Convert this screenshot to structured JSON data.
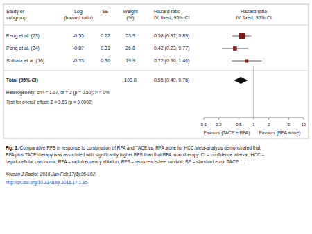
{
  "chart_data": {
    "type": "forest",
    "column_headers": [
      "Study or\nsubgroup",
      "Log\n(hazard ratio)",
      "SE",
      "Weight\n(%)",
      "Hazard ratio\nIV, fixed, 95% CI",
      "Hazard ratio\nIV, fixed, 95% CI"
    ],
    "categories": [
      "Peng et al. (23)",
      "Peng et al. (24)",
      "Shibata et al. (16)"
    ],
    "log_hr": [
      -0.55,
      -0.87,
      -0.33
    ],
    "se": [
      0.22,
      0.31,
      0.36
    ],
    "weight": [
      53.3,
      26.8,
      19.9
    ],
    "values": [
      0.58,
      0.42,
      0.72
    ],
    "ci_low": [
      0.37,
      0.23,
      0.36
    ],
    "ci_high": [
      0.89,
      0.77,
      1.46
    ],
    "value_labels": [
      "0.58 (0.37, 0.89)",
      "0.42 (0.23, 0.77)",
      "0.72 (0.36, 1.46)"
    ],
    "color": "#8B1A1A",
    "total": {
      "label": "Total (95% CI)",
      "weight_label": "100.0",
      "value": 0.55,
      "ci_low": 0.4,
      "ci_high": 0.76,
      "value_label": "0.55 (0.40, 0.76)",
      "color": "#111111"
    },
    "annotations": [
      "Heterogeneity: chi² = 1.37, df = 2 (p = 0.50); I² = 0%",
      "Test for overall effect: Z = 3.69 (p = 0.0002)"
    ],
    "log": "x",
    "xlim": [
      0.1,
      10
    ],
    "xticks": [
      0.1,
      0.2,
      0.5,
      1,
      2,
      5,
      10
    ],
    "reference_line": 1,
    "xlabel_left": "Favours (TACE + RFA)",
    "xlabel_right": "Favours (RFA alone)",
    "caption_title": "Fig. 3.",
    "caption": " Comparative RFS in response to combination of RFA and TACE vs. RFA alone for HCC.Meta-analysis demonstrated that\nRFA plus TACE therapy was associated with significantly higher RFS than that RFA monotherapy. CI = confidence interval, HCC =\nhepatocellular carcinoma, RFA = radiofrequency ablation, RFS = recurrence-free survival, SE = standard error, TACE. . .",
    "source": "Korean J Radiol. 2016 Jan-Feb;17(1):95-102.",
    "link": {
      "text": "http://dx.doi.org/10.3348/kjr.2016.17.1.95",
      "color": "#1155CC"
    }
  }
}
